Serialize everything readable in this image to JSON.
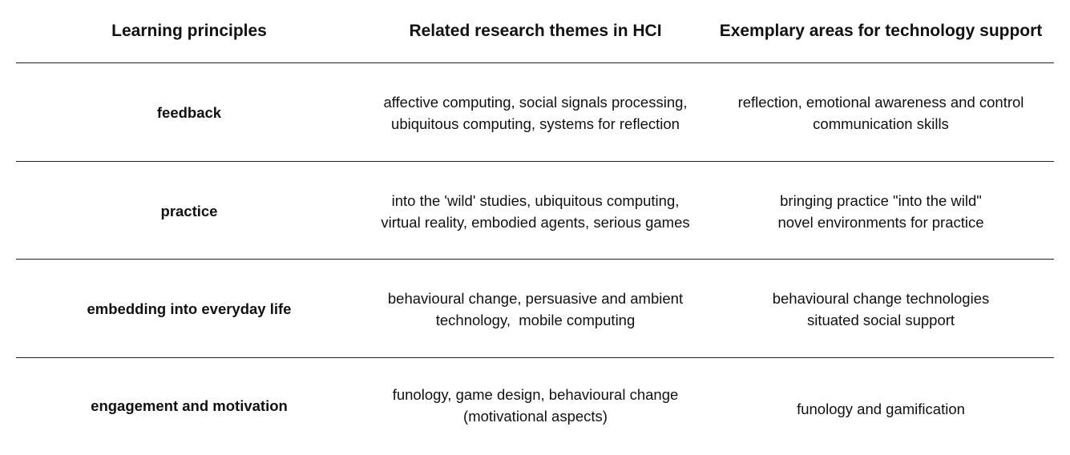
{
  "headers": {
    "principles": "Learning principles",
    "themes": "Related research themes in HCI",
    "areas": "Exemplary areas for technology support"
  },
  "rows": [
    {
      "principle": "feedback",
      "themes": [
        "affective computing, social signals processing,",
        "ubiquitous computing, systems for reflection"
      ],
      "areas": [
        "reflection, emotional awareness and control",
        "communication skills"
      ]
    },
    {
      "principle": "practice",
      "themes": [
        "into the 'wild' studies, ubiquitous computing,",
        "virtual reality, embodied agents, serious games"
      ],
      "areas": [
        "bringing practice \"into the wild\"",
        "novel environments for practice"
      ]
    },
    {
      "principle": "embedding into everyday life",
      "themes": [
        "behavioural change, persuasive and ambient",
        "technology,  mobile computing"
      ],
      "areas": [
        "behavioural change technologies",
        "situated social support"
      ]
    },
    {
      "principle": "engagement and motivation",
      "themes": [
        "funology, game design, behavioural change",
        "(motivational aspects)"
      ],
      "areas": [
        "funology and gamification"
      ]
    }
  ]
}
